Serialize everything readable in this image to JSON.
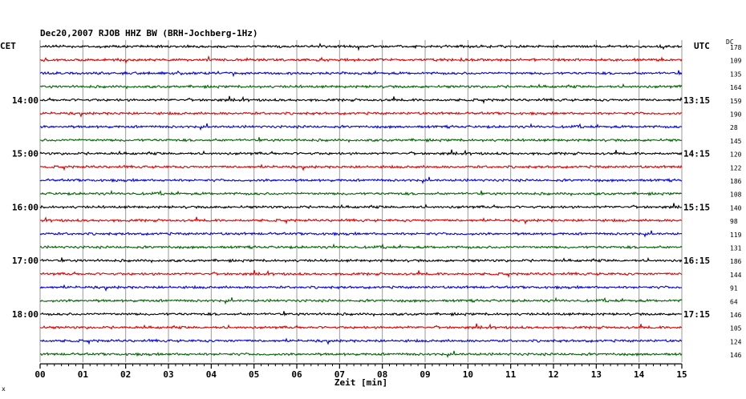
{
  "title": "Dec20,2007   RJOB HHZ BW (BRH-Jochberg-1Hz)",
  "left_timezone": "CET",
  "right_timezone": "UTC",
  "dc_header": "DC",
  "corner_mark": "x",
  "chart_data": {
    "type": "seismogram",
    "xlabel": "Zeit [min]",
    "x_ticks": [
      "00",
      "01",
      "02",
      "03",
      "04",
      "05",
      "06",
      "07",
      "08",
      "09",
      "10",
      "11",
      "12",
      "13",
      "14",
      "15"
    ],
    "xlim": [
      0,
      15
    ],
    "trace_colors": [
      "#000000",
      "#e00000",
      "#0000e0",
      "#006400"
    ],
    "traces": [
      {
        "dc": "178",
        "left_label": "",
        "right_label": ""
      },
      {
        "dc": "109",
        "left_label": "",
        "right_label": ""
      },
      {
        "dc": "135",
        "left_label": "",
        "right_label": ""
      },
      {
        "dc": "164",
        "left_label": "",
        "right_label": ""
      },
      {
        "dc": "159",
        "left_label": "14:00",
        "right_label": "13:15"
      },
      {
        "dc": "190",
        "left_label": "",
        "right_label": ""
      },
      {
        "dc": "28",
        "left_label": "",
        "right_label": ""
      },
      {
        "dc": "145",
        "left_label": "",
        "right_label": ""
      },
      {
        "dc": "120",
        "left_label": "15:00",
        "right_label": "14:15"
      },
      {
        "dc": "122",
        "left_label": "",
        "right_label": ""
      },
      {
        "dc": "186",
        "left_label": "",
        "right_label": ""
      },
      {
        "dc": "108",
        "left_label": "",
        "right_label": ""
      },
      {
        "dc": "140",
        "left_label": "16:00",
        "right_label": "15:15"
      },
      {
        "dc": "98",
        "left_label": "",
        "right_label": ""
      },
      {
        "dc": "119",
        "left_label": "",
        "right_label": ""
      },
      {
        "dc": "131",
        "left_label": "",
        "right_label": ""
      },
      {
        "dc": "186",
        "left_label": "17:00",
        "right_label": "16:15"
      },
      {
        "dc": "144",
        "left_label": "",
        "right_label": ""
      },
      {
        "dc": "91",
        "left_label": "",
        "right_label": ""
      },
      {
        "dc": "64",
        "left_label": "",
        "right_label": ""
      },
      {
        "dc": "146",
        "left_label": "18:00",
        "right_label": "17:15"
      },
      {
        "dc": "105",
        "left_label": "",
        "right_label": ""
      },
      {
        "dc": "124",
        "left_label": "",
        "right_label": ""
      },
      {
        "dc": "146",
        "left_label": "",
        "right_label": ""
      }
    ]
  }
}
